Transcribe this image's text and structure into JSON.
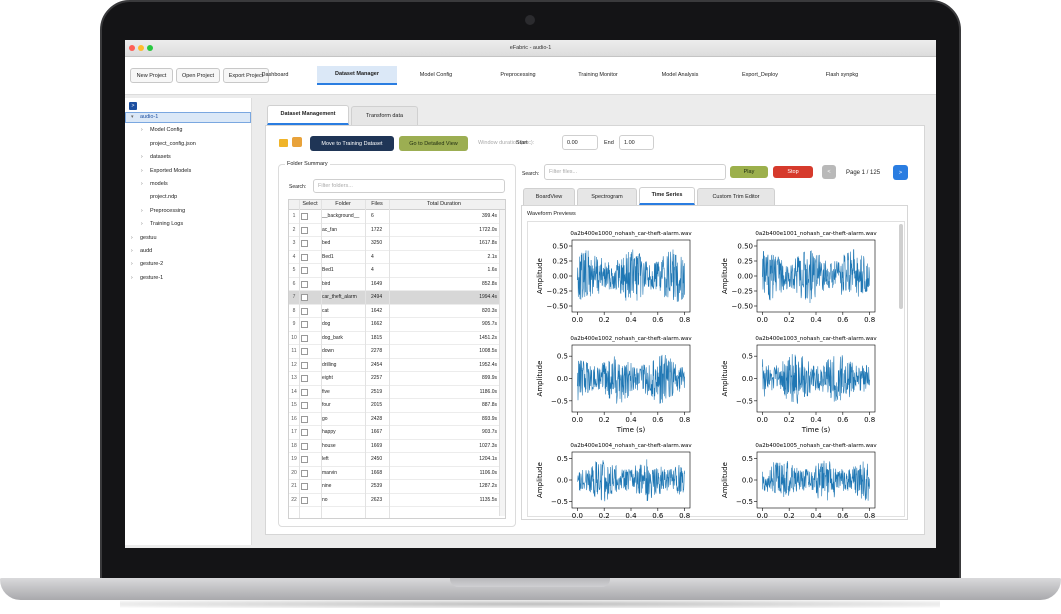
{
  "window": {
    "title": "eFabric - audio-1"
  },
  "toolbar": {
    "buttons": [
      "New Project",
      "Open Project",
      "Export Project"
    ],
    "tabs": [
      "Dashboard",
      "Dataset Manager",
      "Model Config",
      "Preprocessing",
      "Training Monitor",
      "Model Analysis",
      "Export_Deploy",
      "Flash synpkg"
    ],
    "active_tab": 1
  },
  "tree": {
    "toggle": ">",
    "items": [
      {
        "label": "audio-1",
        "level": 0,
        "folder": true,
        "expanded": true,
        "selected": true
      },
      {
        "label": "Model Config",
        "level": 1,
        "folder": true,
        "expanded": false,
        "selected": false
      },
      {
        "label": "project_config.json",
        "level": 1,
        "folder": false,
        "expanded": false,
        "selected": false
      },
      {
        "label": "datasets",
        "level": 1,
        "folder": true,
        "expanded": false,
        "selected": false
      },
      {
        "label": "Exported Models",
        "level": 1,
        "folder": true,
        "expanded": false,
        "selected": false
      },
      {
        "label": "models",
        "level": 1,
        "folder": true,
        "expanded": false,
        "selected": false
      },
      {
        "label": "project.ndp",
        "level": 1,
        "folder": false,
        "expanded": false,
        "selected": false
      },
      {
        "label": "Preprocessing",
        "level": 1,
        "folder": true,
        "expanded": false,
        "selected": false
      },
      {
        "label": "Training Logs",
        "level": 1,
        "folder": true,
        "expanded": false,
        "selected": false
      },
      {
        "label": "gestuu",
        "level": 0,
        "folder": true,
        "expanded": false,
        "selected": false
      },
      {
        "label": "audd",
        "level": 0,
        "folder": true,
        "expanded": false,
        "selected": false
      },
      {
        "label": "gesture-2",
        "level": 0,
        "folder": true,
        "expanded": false,
        "selected": false
      },
      {
        "label": "gesture-1",
        "level": 0,
        "folder": true,
        "expanded": false,
        "selected": false
      }
    ]
  },
  "dataset_manager": {
    "tabs": [
      "Dataset Management",
      "Transform data"
    ],
    "active_tab": 0,
    "move_button": "Move to Training Dataset",
    "detail_button": "Go to Detailed View",
    "window_duration_label": "Window duration (sec):",
    "start_label": "Start",
    "start_value": "0.00",
    "end_label": "End",
    "end_value": "1.00",
    "folder_summary": {
      "title": "Folder Summary",
      "search_label": "Search:",
      "search_placeholder": "Filter folders...",
      "columns": [
        "Select",
        "Folder",
        "Files",
        "Total Duration"
      ],
      "selected_row": 6,
      "rows": [
        [
          1,
          "__background__",
          6,
          "399.4s"
        ],
        [
          2,
          "ac_fan",
          1722,
          "1722.0s"
        ],
        [
          3,
          "bed",
          3250,
          "1617.8s"
        ],
        [
          4,
          "Bed1",
          4,
          "2.1s"
        ],
        [
          5,
          "Bed1",
          4,
          "1.6s"
        ],
        [
          6,
          "bird",
          1649,
          "852.8s"
        ],
        [
          7,
          "car_theft_alarm",
          2494,
          "1994.4s"
        ],
        [
          8,
          "cat",
          1642,
          "820.3s"
        ],
        [
          9,
          "dog",
          1662,
          "905.7s"
        ],
        [
          10,
          "dog_bark",
          1815,
          "1451.2s"
        ],
        [
          11,
          "down",
          2278,
          "1008.5s"
        ],
        [
          12,
          "drilling",
          2454,
          "1952.4s"
        ],
        [
          13,
          "eight",
          2257,
          "899.9s"
        ],
        [
          14,
          "five",
          2519,
          "1186.0s"
        ],
        [
          15,
          "four",
          2015,
          "887.8s"
        ],
        [
          16,
          "go",
          2428,
          "893.9s"
        ],
        [
          17,
          "happy",
          1667,
          "903.7s"
        ],
        [
          18,
          "house",
          1669,
          "1027.3s"
        ],
        [
          19,
          "left",
          2450,
          "1204.1s"
        ],
        [
          20,
          "marvin",
          1668,
          "1106.0s"
        ],
        [
          21,
          "nine",
          2539,
          "1287.2s"
        ],
        [
          22,
          "no",
          2623,
          "1135.5s"
        ]
      ]
    },
    "files": {
      "search_label": "Search:",
      "search_placeholder": "Filter files...",
      "play": "Play",
      "stop": "Stop",
      "prev": "<",
      "page": "Page 1 / 125",
      "next": ">",
      "tabs": [
        "BoardView",
        "Spectrogram",
        "Time Series",
        "Custom Trim Editor"
      ],
      "active_tab": 2,
      "preview_title": "Waveform Previews",
      "plots": [
        {
          "title": "0a2b400e1000_nohash_car-theft-alarm.wav",
          "ylabel": "Amplitude",
          "xlim": [
            -0.04,
            0.84
          ],
          "ylim": [
            -0.6,
            0.6
          ],
          "yticks": [
            {
              "value": 0.5,
              "label": "0.50"
            },
            {
              "value": 0.25,
              "label": "0.25"
            },
            {
              "value": 0,
              "label": "0.00"
            },
            {
              "value": -0.25,
              "label": "−0.25"
            },
            {
              "value": -0.5,
              "label": "−0.50"
            }
          ],
          "xticks": [
            {
              "value": 0,
              "label": "0.0"
            },
            0.2,
            0.4,
            0.6,
            0.8
          ]
        },
        {
          "title": "0a2b400e1001_nohash_car-theft-alarm.wav",
          "ylabel": "Amplitude",
          "xlim": [
            -0.04,
            0.84
          ],
          "ylim": [
            -0.6,
            0.6
          ],
          "yticks": [
            {
              "value": 0.5,
              "label": "0.50"
            },
            {
              "value": 0.25,
              "label": "0.25"
            },
            {
              "value": 0,
              "label": "0.00"
            },
            {
              "value": -0.25,
              "label": "−0.25"
            },
            {
              "value": -0.5,
              "label": "−0.50"
            }
          ],
          "xticks": [
            {
              "value": 0,
              "label": "0.0"
            },
            0.2,
            0.4,
            0.6,
            0.8
          ]
        },
        {
          "title": "0a2b400e1002_nohash_car-theft-alarm.wav",
          "ylabel": "Amplitude",
          "xlabel": "Time (s)",
          "xlim": [
            -0.04,
            0.84
          ],
          "ylim": [
            -0.75,
            0.75
          ],
          "yticks": [
            0.5,
            {
              "value": 0,
              "label": "0.0"
            },
            {
              "value": -0.5,
              "label": "−0.5"
            }
          ],
          "xticks": [
            {
              "value": 0,
              "label": "0.0"
            },
            0.2,
            0.4,
            0.6,
            0.8
          ]
        },
        {
          "title": "0a2b400e1003_nohash_car-theft-alarm.wav",
          "ylabel": "Amplitude",
          "xlabel": "Time (s)",
          "xlim": [
            -0.04,
            0.84
          ],
          "ylim": [
            -0.75,
            0.75
          ],
          "yticks": [
            0.5,
            {
              "value": 0,
              "label": "0.0"
            },
            {
              "value": -0.5,
              "label": "−0.5"
            }
          ],
          "xticks": [
            {
              "value": 0,
              "label": "0.0"
            },
            0.2,
            0.4,
            0.6,
            0.8
          ]
        },
        {
          "title": "0a2b400e1004_nohash_car-theft-alarm.wav",
          "ylabel": "Amplitude",
          "xlim": [
            -0.04,
            0.84
          ],
          "ylim": [
            -0.65,
            0.65
          ],
          "yticks": [
            0.5,
            {
              "value": 0,
              "label": "0.0"
            },
            {
              "value": -0.5,
              "label": "−0.5"
            }
          ],
          "xticks": [
            {
              "value": 0,
              "label": "0.0"
            },
            0.2,
            0.4,
            0.6,
            0.8
          ]
        },
        {
          "title": "0a2b400e1005_nohash_car-theft-alarm.wav",
          "ylabel": "Amplitude",
          "xlim": [
            -0.04,
            0.84
          ],
          "ylim": [
            -0.65,
            0.65
          ],
          "yticks": [
            0.5,
            {
              "value": 0,
              "label": "0.0"
            },
            {
              "value": -0.5,
              "label": "−0.5"
            }
          ],
          "xticks": [
            {
              "value": 0,
              "label": "0.0"
            },
            0.2,
            0.4,
            0.6,
            0.8
          ]
        }
      ]
    }
  }
}
